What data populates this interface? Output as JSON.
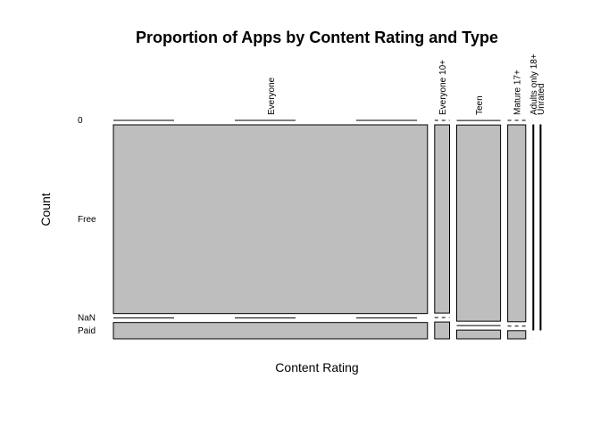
{
  "chart_data": {
    "type": "mosaic",
    "title": "Proportion of Apps by Content Rating and Type",
    "xlabel": "Content Rating",
    "ylabel": "Count",
    "columns": [
      "Everyone",
      "Everyone 10+",
      "Teen",
      "Mature 17+",
      "Adults only 18+",
      "Unrated"
    ],
    "rows": [
      "0",
      "Free",
      "NaN",
      "Paid"
    ],
    "counts": {
      "Everyone": {
        "0": 0,
        "Free": 8020,
        "NaN": 0,
        "Paid": 694
      },
      "Everyone 10+": {
        "0": 0,
        "Free": 380,
        "NaN": 0,
        "Paid": 34
      },
      "Teen": {
        "0": 1,
        "Free": 1163,
        "NaN": 0,
        "Paid": 52
      },
      "Mature 17+": {
        "0": 0,
        "Free": 480,
        "NaN": 0,
        "Paid": 20
      },
      "Adults only 18+": {
        "0": 0,
        "Free": 3,
        "NaN": 0,
        "Paid": 0
      },
      "Unrated": {
        "0": 0,
        "Free": 2,
        "NaN": 0,
        "Paid": 0
      }
    }
  }
}
